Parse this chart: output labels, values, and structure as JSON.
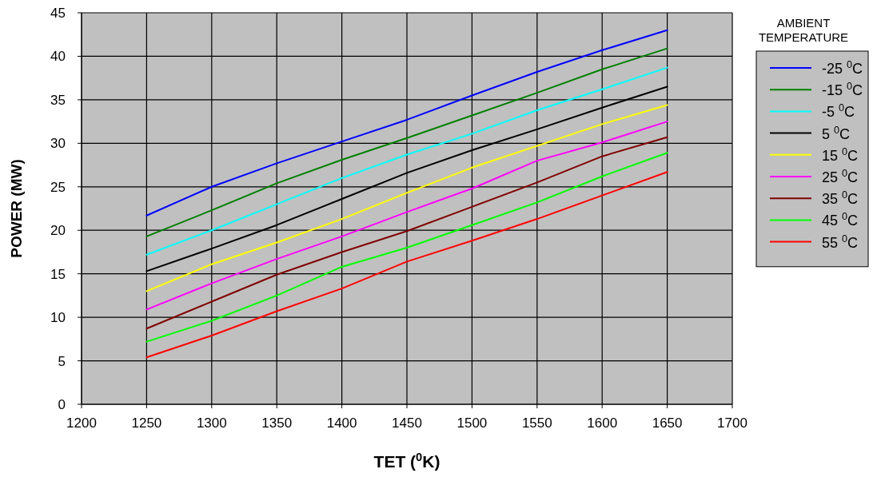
{
  "chart_data": {
    "type": "line",
    "xlabel": "TET ($^{0}$K)",
    "ylabel": "POWER (MW)",
    "legend_title": "AMBIENT TEMPERATURE",
    "legend": "right",
    "grid": true,
    "marker": "none",
    "line_style": "solid",
    "x": [
      1250,
      1300,
      1350,
      1400,
      1450,
      1500,
      1550,
      1600,
      1650
    ],
    "xlim": [
      1200,
      1700
    ],
    "xticks": [
      1200,
      1250,
      1300,
      1350,
      1400,
      1450,
      1500,
      1550,
      1600,
      1650,
      1700
    ],
    "ylim": [
      0,
      45
    ],
    "yticks": [
      0,
      5,
      10,
      15,
      20,
      25,
      30,
      35,
      40,
      45
    ],
    "series": [
      {
        "name": "-25 $^{0}$C",
        "color": "#0000ff",
        "values": [
          21.7,
          25.0,
          27.7,
          30.2,
          32.7,
          35.5,
          38.2,
          40.7,
          43.0
        ]
      },
      {
        "name": "-15 $^{0}$C",
        "color": "#008000",
        "values": [
          19.3,
          22.3,
          25.4,
          28.1,
          30.6,
          33.2,
          35.8,
          38.5,
          40.9
        ]
      },
      {
        "name": "-5 $^{0}$C",
        "color": "#00ffff",
        "values": [
          17.2,
          20.0,
          23.0,
          26.0,
          28.7,
          31.1,
          33.8,
          36.2,
          38.7
        ]
      },
      {
        "name": "5 $^{0}$C",
        "color": "#000000",
        "values": [
          15.3,
          17.9,
          20.6,
          23.6,
          26.6,
          29.2,
          31.6,
          34.1,
          36.5
        ]
      },
      {
        "name": "15 $^{0}$C",
        "color": "#ffff00",
        "values": [
          13.0,
          16.1,
          18.6,
          21.3,
          24.3,
          27.2,
          29.7,
          32.2,
          34.4
        ]
      },
      {
        "name": "25 $^{0}$C",
        "color": "#ff00ff",
        "values": [
          10.9,
          13.9,
          16.7,
          19.3,
          22.1,
          24.8,
          28.0,
          30.1,
          32.5
        ]
      },
      {
        "name": "35 $^{0}$C",
        "color": "#800000",
        "values": [
          8.7,
          11.8,
          14.9,
          17.5,
          19.9,
          22.7,
          25.5,
          28.5,
          30.7
        ]
      },
      {
        "name": "45 $^{0}$C",
        "color": "#00ff00",
        "values": [
          7.2,
          9.6,
          12.5,
          15.8,
          18.0,
          20.6,
          23.2,
          26.2,
          28.9
        ]
      },
      {
        "name": "55 $^{0}$C",
        "color": "#ff0000",
        "values": [
          5.4,
          7.9,
          10.7,
          13.3,
          16.4,
          18.8,
          21.3,
          24.0,
          26.7
        ]
      }
    ]
  }
}
